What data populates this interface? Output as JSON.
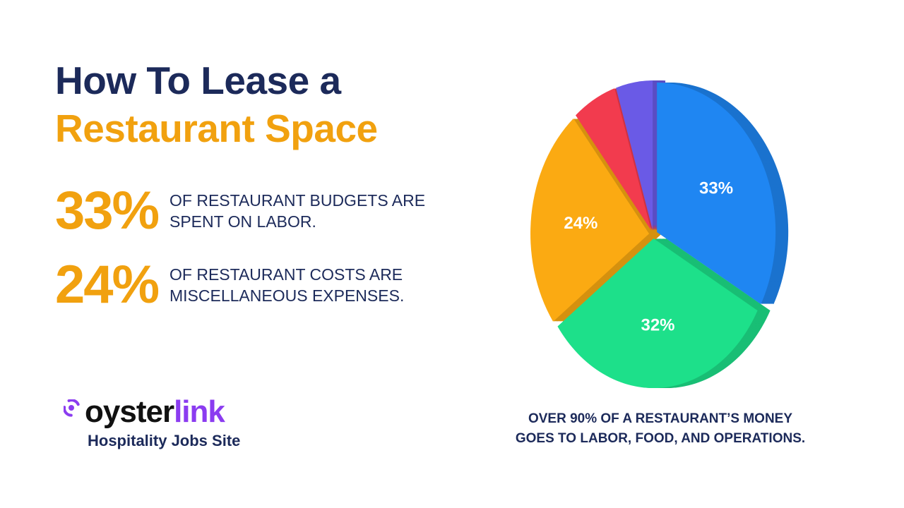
{
  "title": {
    "line1": "How To Lease a",
    "line2": "Restaurant Space"
  },
  "stats": [
    {
      "value": "33%",
      "line1": "OF RESTAURANT BUDGETS ARE",
      "line2": "SPENT ON LABOR."
    },
    {
      "value": "24%",
      "line1": "OF RESTAURANT COSTS ARE",
      "line2": "MISCELLANEOUS EXPENSES."
    }
  ],
  "logo": {
    "part1": "oyster",
    "part2": "link",
    "tagline": "Hospitality Jobs Site"
  },
  "caption": {
    "line1": "OVER 90% OF A RESTAURANT’S MONEY",
    "line2": "GOES TO LABOR, FOOD, AND OPERATIONS."
  },
  "colors": {
    "navy": "#1c2a5a",
    "orange": "#f1a10f",
    "purple": "#8b3cf0"
  },
  "chart_data": {
    "type": "pie",
    "style": "3d-exploded",
    "slices": [
      {
        "value": 33,
        "label": "33%",
        "color": "#1f86f2"
      },
      {
        "value": 32,
        "label": "32%",
        "color": "#1de08a"
      },
      {
        "value": 24,
        "label": "24%",
        "color": "#fbaa12"
      },
      {
        "value": 6,
        "label": "",
        "color": "#f23b4e"
      },
      {
        "value": 5,
        "label": "",
        "color": "#6a5ae6"
      }
    ]
  }
}
